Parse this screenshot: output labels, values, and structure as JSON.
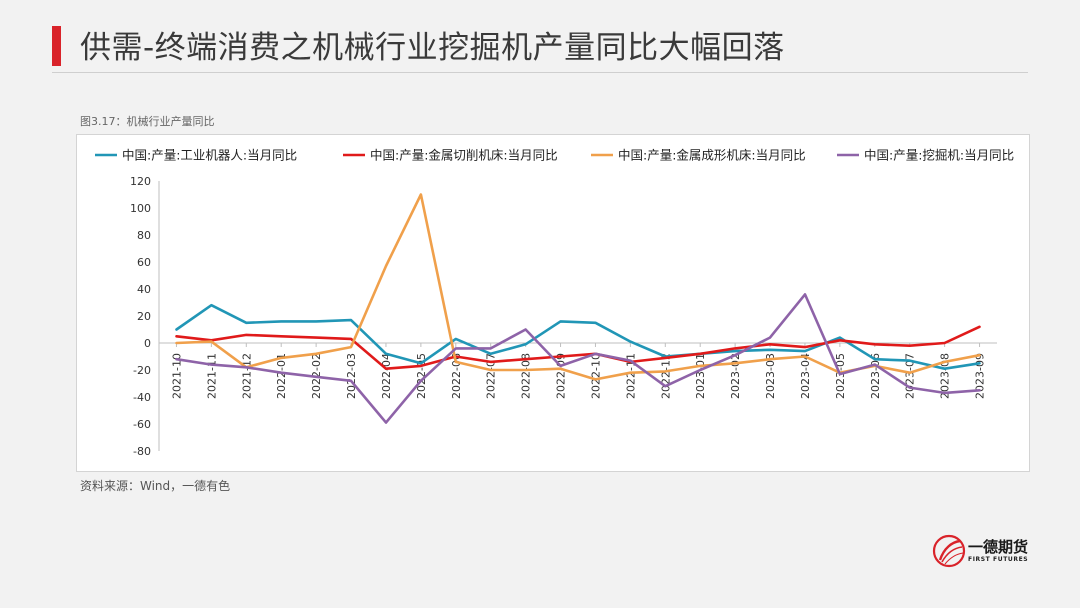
{
  "slide": {
    "title": "供需-终端消费之机械行业挖掘机产量同比大幅回落",
    "caption": "图3.17：机械行业产量同比",
    "source": "资料来源：Wind，一德有色",
    "accent_color": "#d9232a"
  },
  "logo": {
    "name_cn": "一德期货",
    "name_en": "FIRST FUTURES",
    "mark_color": "#d9232a"
  },
  "chart_data": {
    "type": "line",
    "categories": [
      "2021-10",
      "2021-11",
      "2021-12",
      "2022-01",
      "2022-02",
      "2022-03",
      "2022-04",
      "2022-05",
      "2022-06",
      "2022-07",
      "2022-08",
      "2022-09",
      "2022-10",
      "2022-11",
      "2022-12",
      "2023-01",
      "2023-02",
      "2023-03",
      "2023-04",
      "2023-05",
      "2023-06",
      "2023-07",
      "2023-08",
      "2023-09"
    ],
    "ylim": [
      -80,
      120
    ],
    "yticks": [
      120,
      100,
      80,
      60,
      40,
      20,
      0,
      -20,
      -40,
      -60,
      -80
    ],
    "legend_position": "top",
    "grid": false,
    "series": [
      {
        "name": "中国:产量:工业机器人:当月同比",
        "color": "#2196b6",
        "values": [
          10,
          28,
          15,
          16,
          16,
          17,
          -8,
          -15,
          3,
          -8,
          -1,
          16,
          15,
          1,
          -10,
          -8,
          -6,
          -5,
          -6,
          4,
          -12,
          -13,
          -19,
          -15
        ]
      },
      {
        "name": "中国:产量:金属切削机床:当月同比",
        "color": "#e01a1a",
        "values": [
          5,
          2,
          6,
          5,
          4,
          3,
          -19,
          -17,
          -10,
          -14,
          -12,
          -10,
          -8,
          -14,
          -11,
          -8,
          -4,
          -1,
          -3,
          2,
          -1,
          -2,
          0,
          12
        ]
      },
      {
        "name": "中国:产量:金属成形机床:当月同比",
        "color": "#f0a04b",
        "values": [
          0,
          1,
          -18,
          -11,
          -8,
          -3,
          57,
          110,
          -14,
          -20,
          -20,
          -19,
          -27,
          -22,
          -21,
          -17,
          -15,
          -12,
          -10,
          -22,
          -17,
          -22,
          -14,
          -9
        ]
      },
      {
        "name": "中国:产量:挖掘机:当月同比",
        "color": "#8e63a8",
        "values": [
          -12,
          -16,
          -18,
          -22,
          -25,
          -28,
          -59,
          -28,
          -4,
          -4,
          10,
          -17,
          -8,
          -13,
          -32,
          -20,
          -9,
          4,
          36,
          -23,
          -16,
          -33,
          -37,
          -35
        ]
      }
    ]
  }
}
